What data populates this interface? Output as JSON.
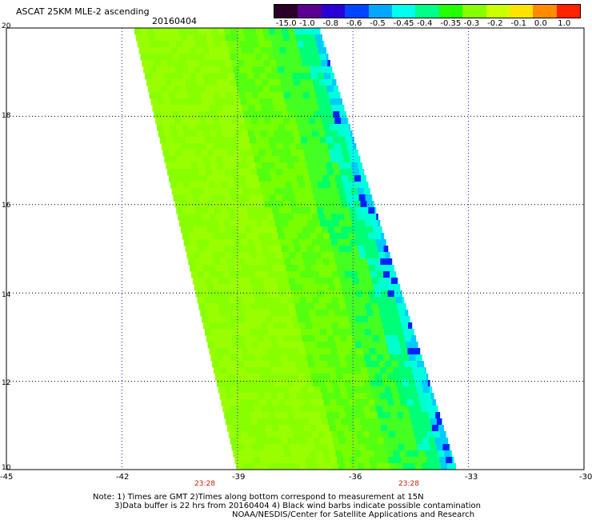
{
  "header": {
    "title": "ASCAT 25KM MLE-2 ascending",
    "date": "20160404"
  },
  "colorbar": {
    "labels": [
      "-15.0",
      "-1.0",
      "-0.8",
      "-0.6",
      "-0.5",
      "-0.45",
      "-0.4",
      "-0.35",
      "-0.3",
      "-0.2",
      "-0.1",
      "0.0",
      "1.0"
    ],
    "colors": [
      "#2a0028",
      "#5a0090",
      "#2a00d8",
      "#0044ff",
      "#00a8ff",
      "#00ffee",
      "#00ff88",
      "#22ff00",
      "#88ff00",
      "#ccff00",
      "#ffe400",
      "#ff8c00",
      "#ff2200"
    ]
  },
  "axes": {
    "x_ticks": [
      "-45",
      "-42",
      "-39",
      "-36",
      "-33",
      "-30"
    ],
    "y_ticks": [
      "10",
      "12",
      "14",
      "16",
      "18",
      "20"
    ],
    "time_labels": [
      "23:28",
      "23:28"
    ]
  },
  "notes": {
    "line1": "Note: 1) Times are GMT 2)Times along bottom correspond to measurement at 15N",
    "line2": "3)Data buffer is 22 hrs from 20160404 4) Black wind barbs indicate possible contamination",
    "line3": "NOAA/NESDIS/Center for Satellite Applications and Research"
  },
  "map": {
    "lon_range": [
      -45,
      -30
    ],
    "lat_range": [
      10,
      20
    ],
    "grid": "dotted",
    "swath_color_dominant": "#88ff00"
  }
}
